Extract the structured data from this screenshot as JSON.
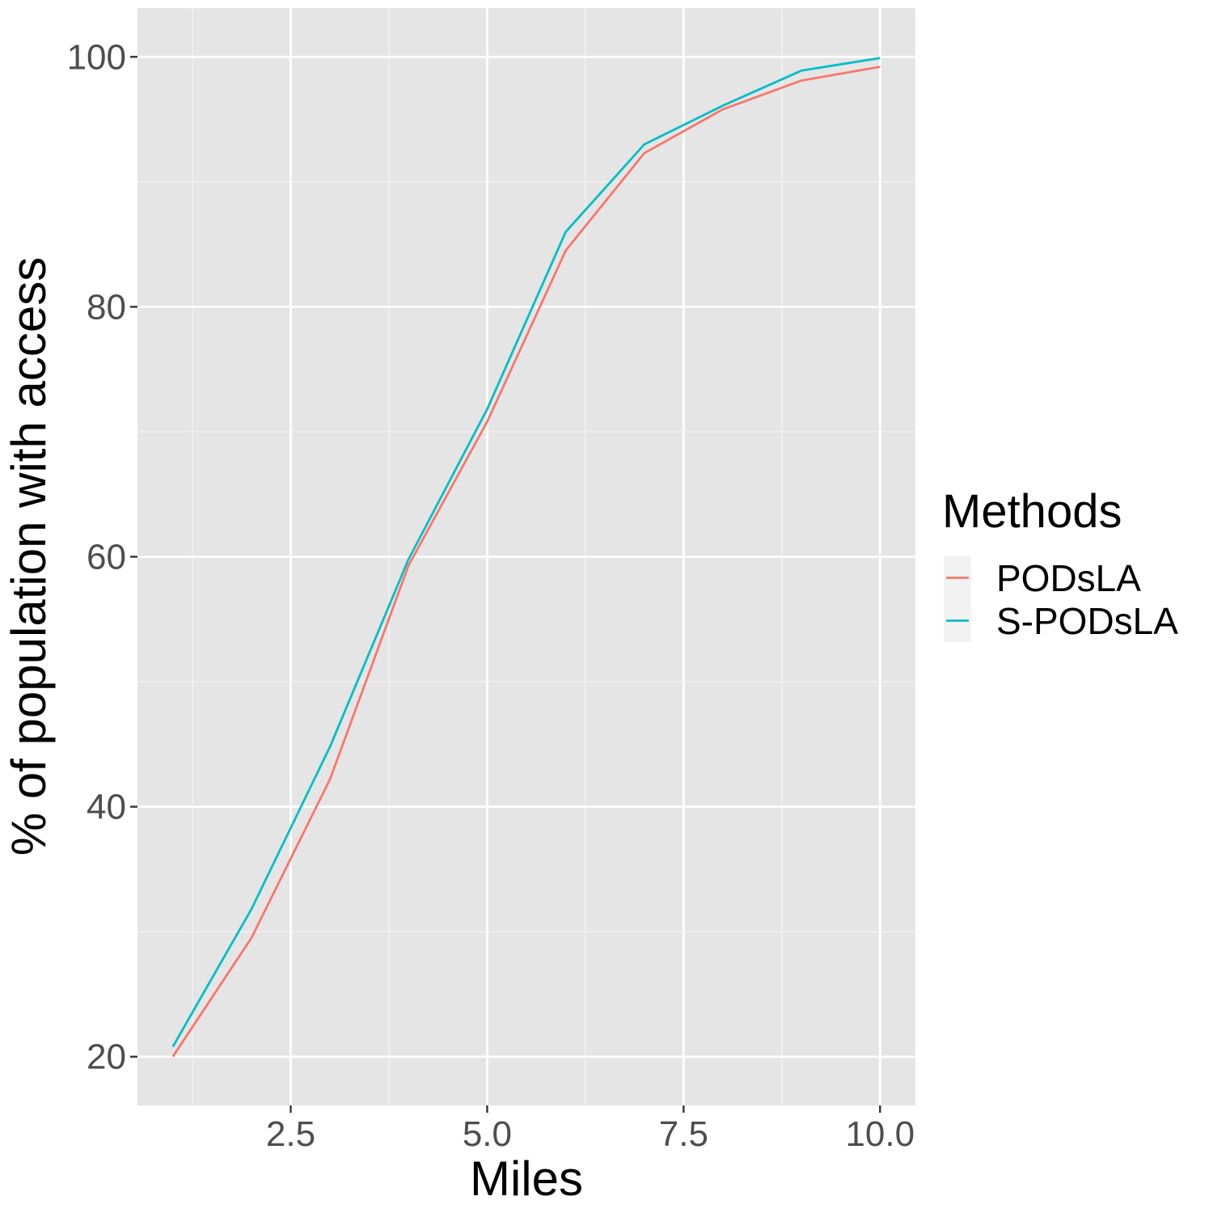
{
  "chart_data": {
    "type": "line",
    "title": "",
    "xlabel": "Miles",
    "ylabel": "% of population with access",
    "xlim": [
      0.55,
      10.45
    ],
    "ylim": [
      16.1,
      103.9
    ],
    "x_ticks": [
      2.5,
      5.0,
      7.5,
      10.0
    ],
    "x_tick_labels": [
      "2.5",
      "5.0",
      "7.5",
      "10.0"
    ],
    "y_ticks": [
      20,
      40,
      60,
      80,
      100
    ],
    "y_tick_labels": [
      "20",
      "40",
      "60",
      "80",
      "100"
    ],
    "grid": true,
    "legend": {
      "title": "Methods",
      "position": "right"
    },
    "x": [
      1,
      2,
      3,
      4,
      5,
      6,
      7,
      8,
      9,
      10
    ],
    "series": [
      {
        "name": "PODsLA",
        "color": "#F8766D",
        "values": [
          20.0,
          29.5,
          42.2,
          59.3,
          70.8,
          84.5,
          92.3,
          95.8,
          98.1,
          99.2
        ]
      },
      {
        "name": "S-PODsLA",
        "color": "#00BFC4",
        "values": [
          20.8,
          31.8,
          44.8,
          59.8,
          71.8,
          86.0,
          93.0,
          96.1,
          98.9,
          99.9
        ]
      }
    ]
  }
}
